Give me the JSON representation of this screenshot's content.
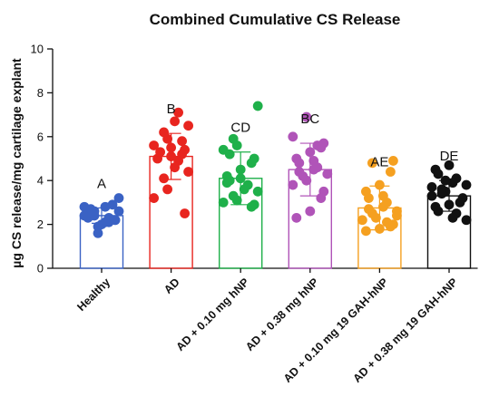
{
  "chart_data": {
    "type": "bar",
    "title": "Combined Cumulative CS Release",
    "xlabel": "",
    "ylabel": "µg CS release/mg cartilage explant",
    "ylim": [
      0,
      10
    ],
    "yticks": [
      0,
      2,
      4,
      6,
      8,
      10
    ],
    "categories": [
      "Healthy",
      "AD",
      "AD + 0.10 mg hNP",
      "AD + 0.38 mg hNP",
      "AD + 0.10 mg 19 GAH-hNP",
      "AD + 0.38 mg 19 GAH-hNP"
    ],
    "values": [
      2.4,
      5.1,
      4.1,
      4.5,
      2.75,
      3.3
    ],
    "error": [
      0.35,
      1.05,
      1.2,
      1.2,
      1.0,
      0.7
    ],
    "group_labels": [
      "A",
      "B",
      "CD",
      "BC",
      "AE",
      "DE"
    ],
    "colors": [
      "#3a62c4",
      "#e8251f",
      "#1fb04a",
      "#b054b8",
      "#f5a020",
      "#111111"
    ],
    "points": [
      [
        2.3,
        2.5,
        2.1,
        2.8,
        3.2,
        2.6,
        1.6,
        2.4,
        2.2,
        2.9,
        2.0,
        2.5,
        2.7,
        2.3,
        2.1,
        2.6,
        2.4,
        1.9,
        2.8,
        2.2
      ],
      [
        7.1,
        6.7,
        6.5,
        6.2,
        5.9,
        5.6,
        5.4,
        5.2,
        5.5,
        5.0,
        5.3,
        4.9,
        4.6,
        4.4,
        4.1,
        3.6,
        3.2,
        2.5,
        5.8,
        5.1
      ],
      [
        7.4,
        5.9,
        5.6,
        5.4,
        5.0,
        4.8,
        4.5,
        4.2,
        4.0,
        3.8,
        3.6,
        3.5,
        3.3,
        3.1,
        3.0,
        2.9,
        2.8,
        4.1,
        3.9,
        5.2
      ],
      [
        6.9,
        6.0,
        5.7,
        5.5,
        5.3,
        5.0,
        4.8,
        4.6,
        4.5,
        4.3,
        4.2,
        4.0,
        3.8,
        3.5,
        3.2,
        2.6,
        2.3,
        4.4,
        5.6,
        4.9
      ],
      [
        4.9,
        4.4,
        3.8,
        3.5,
        3.2,
        3.0,
        2.8,
        2.6,
        2.5,
        2.3,
        2.2,
        2.0,
        1.9,
        1.8,
        1.7,
        2.7,
        2.1,
        3.3,
        2.4,
        4.8
      ],
      [
        4.7,
        4.5,
        4.3,
        4.1,
        3.9,
        3.8,
        3.6,
        3.5,
        3.3,
        3.2,
        3.0,
        2.9,
        2.8,
        2.6,
        2.5,
        2.3,
        2.2,
        3.4,
        4.0,
        3.7
      ]
    ],
    "grid": false,
    "legend": "none"
  }
}
